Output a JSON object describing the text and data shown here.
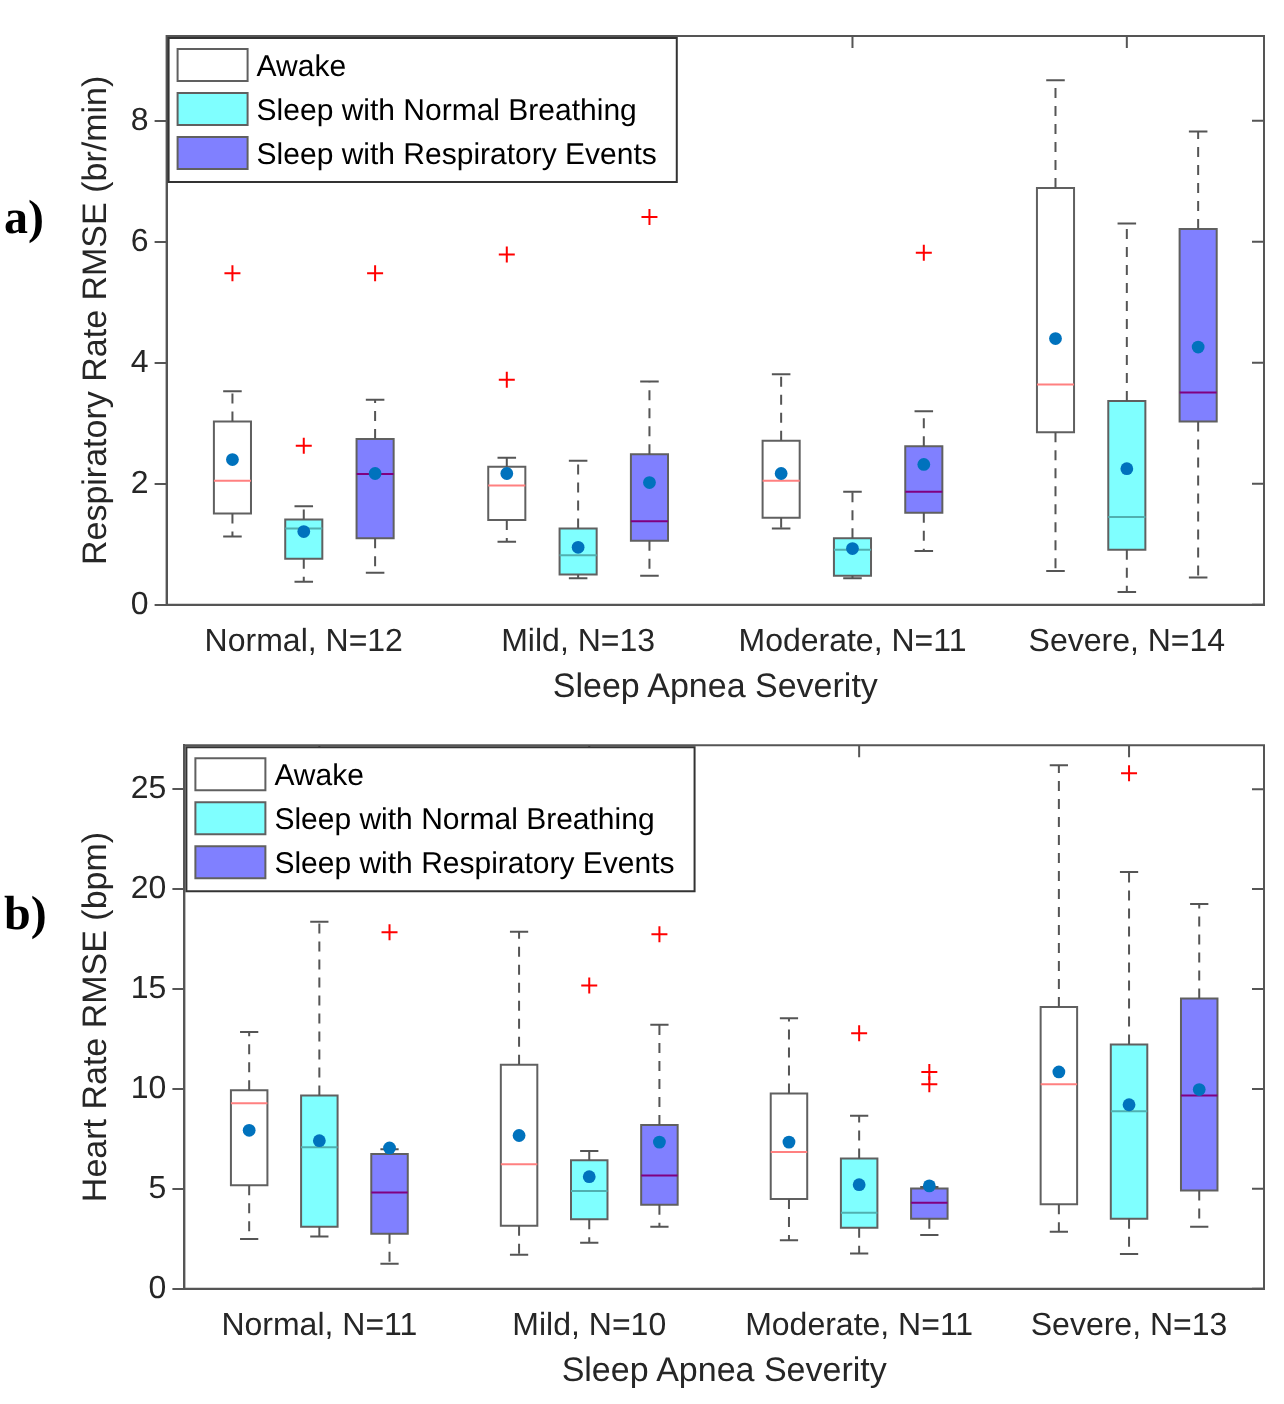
{
  "chart_data": [
    {
      "type": "box",
      "annotations": [
        "a)"
      ],
      "xlabel": "Sleep Apnea Severity",
      "ylabel": "Respiratory Rate RMSE (br/min)",
      "categories": [
        "Normal, N=12",
        "Mild, N=13",
        "Moderate, N=11",
        "Severe, N=14"
      ],
      "ylim": [
        0,
        9.4
      ],
      "yticks": [
        0,
        2,
        4,
        6,
        8
      ],
      "grid": false,
      "legend": "top left",
      "series": [
        {
          "name": "Awake",
          "color": "#ffffff",
          "boxes": [
            {
              "low": 1.13,
              "q1": 1.51,
              "median": 2.05,
              "q3": 3.03,
              "high": 3.53,
              "mean": 2.4,
              "outliers": [
                5.48
              ]
            },
            {
              "low": 1.04,
              "q1": 1.4,
              "median": 1.97,
              "q3": 2.28,
              "high": 2.43,
              "mean": 2.17,
              "outliers": [
                5.79,
                3.72
              ]
            },
            {
              "low": 1.26,
              "q1": 1.44,
              "median": 2.05,
              "q3": 2.71,
              "high": 3.81,
              "mean": 2.17
            },
            {
              "low": 0.56,
              "q1": 2.85,
              "median": 3.64,
              "q3": 6.89,
              "high": 8.67,
              "mean": 4.4
            }
          ]
        },
        {
          "name": "Sleep with Normal Breathing",
          "color": "#7fffff",
          "boxes": [
            {
              "low": 0.38,
              "q1": 0.76,
              "median": 1.26,
              "q3": 1.41,
              "high": 1.63,
              "mean": 1.21,
              "outliers": [
                2.63
              ]
            },
            {
              "low": 0.44,
              "q1": 0.5,
              "median": 0.82,
              "q3": 1.26,
              "high": 2.38,
              "mean": 0.95
            },
            {
              "low": 0.44,
              "q1": 0.48,
              "median": 0.91,
              "q3": 1.1,
              "high": 1.87,
              "mean": 0.93
            },
            {
              "low": 0.21,
              "q1": 0.91,
              "median": 1.45,
              "q3": 3.37,
              "high": 6.3,
              "mean": 2.25
            }
          ]
        },
        {
          "name": "Sleep with Respiratory Events",
          "color": "#8080ff",
          "boxes": [
            {
              "low": 0.53,
              "q1": 1.1,
              "median": 2.16,
              "q3": 2.74,
              "high": 3.39,
              "mean": 2.17,
              "outliers": [
                5.48
              ]
            },
            {
              "low": 0.48,
              "q1": 1.06,
              "median": 1.38,
              "q3": 2.49,
              "high": 3.69,
              "mean": 2.02,
              "outliers": [
                6.41
              ]
            },
            {
              "low": 0.89,
              "q1": 1.52,
              "median": 1.87,
              "q3": 2.62,
              "high": 3.2,
              "mean": 2.32,
              "outliers": [
                5.82
              ]
            },
            {
              "low": 0.45,
              "q1": 3.03,
              "median": 3.51,
              "q3": 6.21,
              "high": 7.82,
              "mean": 4.26
            }
          ]
        }
      ]
    },
    {
      "type": "box",
      "annotations": [
        "b)"
      ],
      "xlabel": "Sleep Apnea Severity",
      "ylabel": "Heart Rate RMSE (bpm)",
      "categories": [
        "Normal, N=11",
        "Mild, N=10",
        "Moderate, N=11",
        "Severe, N=13"
      ],
      "ylim": [
        0,
        27.2
      ],
      "yticks": [
        0,
        5,
        10,
        15,
        20,
        25
      ],
      "grid": false,
      "legend": "top left",
      "series": [
        {
          "name": "Awake",
          "color": "#ffffff",
          "boxes": [
            {
              "low": 2.49,
              "q1": 5.18,
              "median": 9.28,
              "q3": 9.93,
              "high": 12.85,
              "mean": 7.93
            },
            {
              "low": 1.7,
              "q1": 3.15,
              "median": 6.23,
              "q3": 11.21,
              "high": 17.87,
              "mean": 7.67
            },
            {
              "low": 2.43,
              "q1": 4.49,
              "median": 6.85,
              "q3": 9.77,
              "high": 13.54,
              "mean": 7.34
            },
            {
              "low": 2.85,
              "q1": 4.23,
              "median": 10.23,
              "q3": 14.1,
              "high": 26.2,
              "mean": 10.85
            }
          ]
        },
        {
          "name": "Sleep with Normal Breathing",
          "color": "#7fffff",
          "boxes": [
            {
              "low": 2.62,
              "q1": 3.11,
              "median": 7.08,
              "q3": 9.67,
              "high": 18.36,
              "mean": 7.41
            },
            {
              "low": 2.3,
              "q1": 3.48,
              "median": 4.89,
              "q3": 6.43,
              "high": 6.89,
              "mean": 5.61,
              "outliers": [
                15.18
              ]
            },
            {
              "low": 1.77,
              "q1": 3.05,
              "median": 3.8,
              "q3": 6.52,
              "high": 8.66,
              "mean": 5.21,
              "outliers": [
                12.79
              ]
            },
            {
              "low": 1.74,
              "q1": 3.51,
              "median": 8.89,
              "q3": 12.23,
              "high": 20.85,
              "mean": 9.21,
              "outliers": [
                25.8
              ]
            }
          ]
        },
        {
          "name": "Sleep with Respiratory Events",
          "color": "#8080ff",
          "boxes": [
            {
              "low": 1.25,
              "q1": 2.75,
              "median": 4.82,
              "q3": 6.75,
              "high": 6.98,
              "mean": 7.05,
              "outliers": [
                17.84
              ]
            },
            {
              "low": 3.11,
              "q1": 4.2,
              "median": 5.67,
              "q3": 8.2,
              "high": 13.21,
              "mean": 7.34,
              "outliers": [
                17.74
              ]
            },
            {
              "low": 2.69,
              "q1": 3.51,
              "median": 4.3,
              "q3": 5.02,
              "high": 5.1,
              "mean": 5.15,
              "outliers": [
                10.85,
                10.23
              ]
            },
            {
              "low": 3.11,
              "q1": 4.92,
              "median": 9.67,
              "q3": 14.52,
              "high": 19.25,
              "mean": 9.97
            }
          ]
        }
      ]
    }
  ]
}
